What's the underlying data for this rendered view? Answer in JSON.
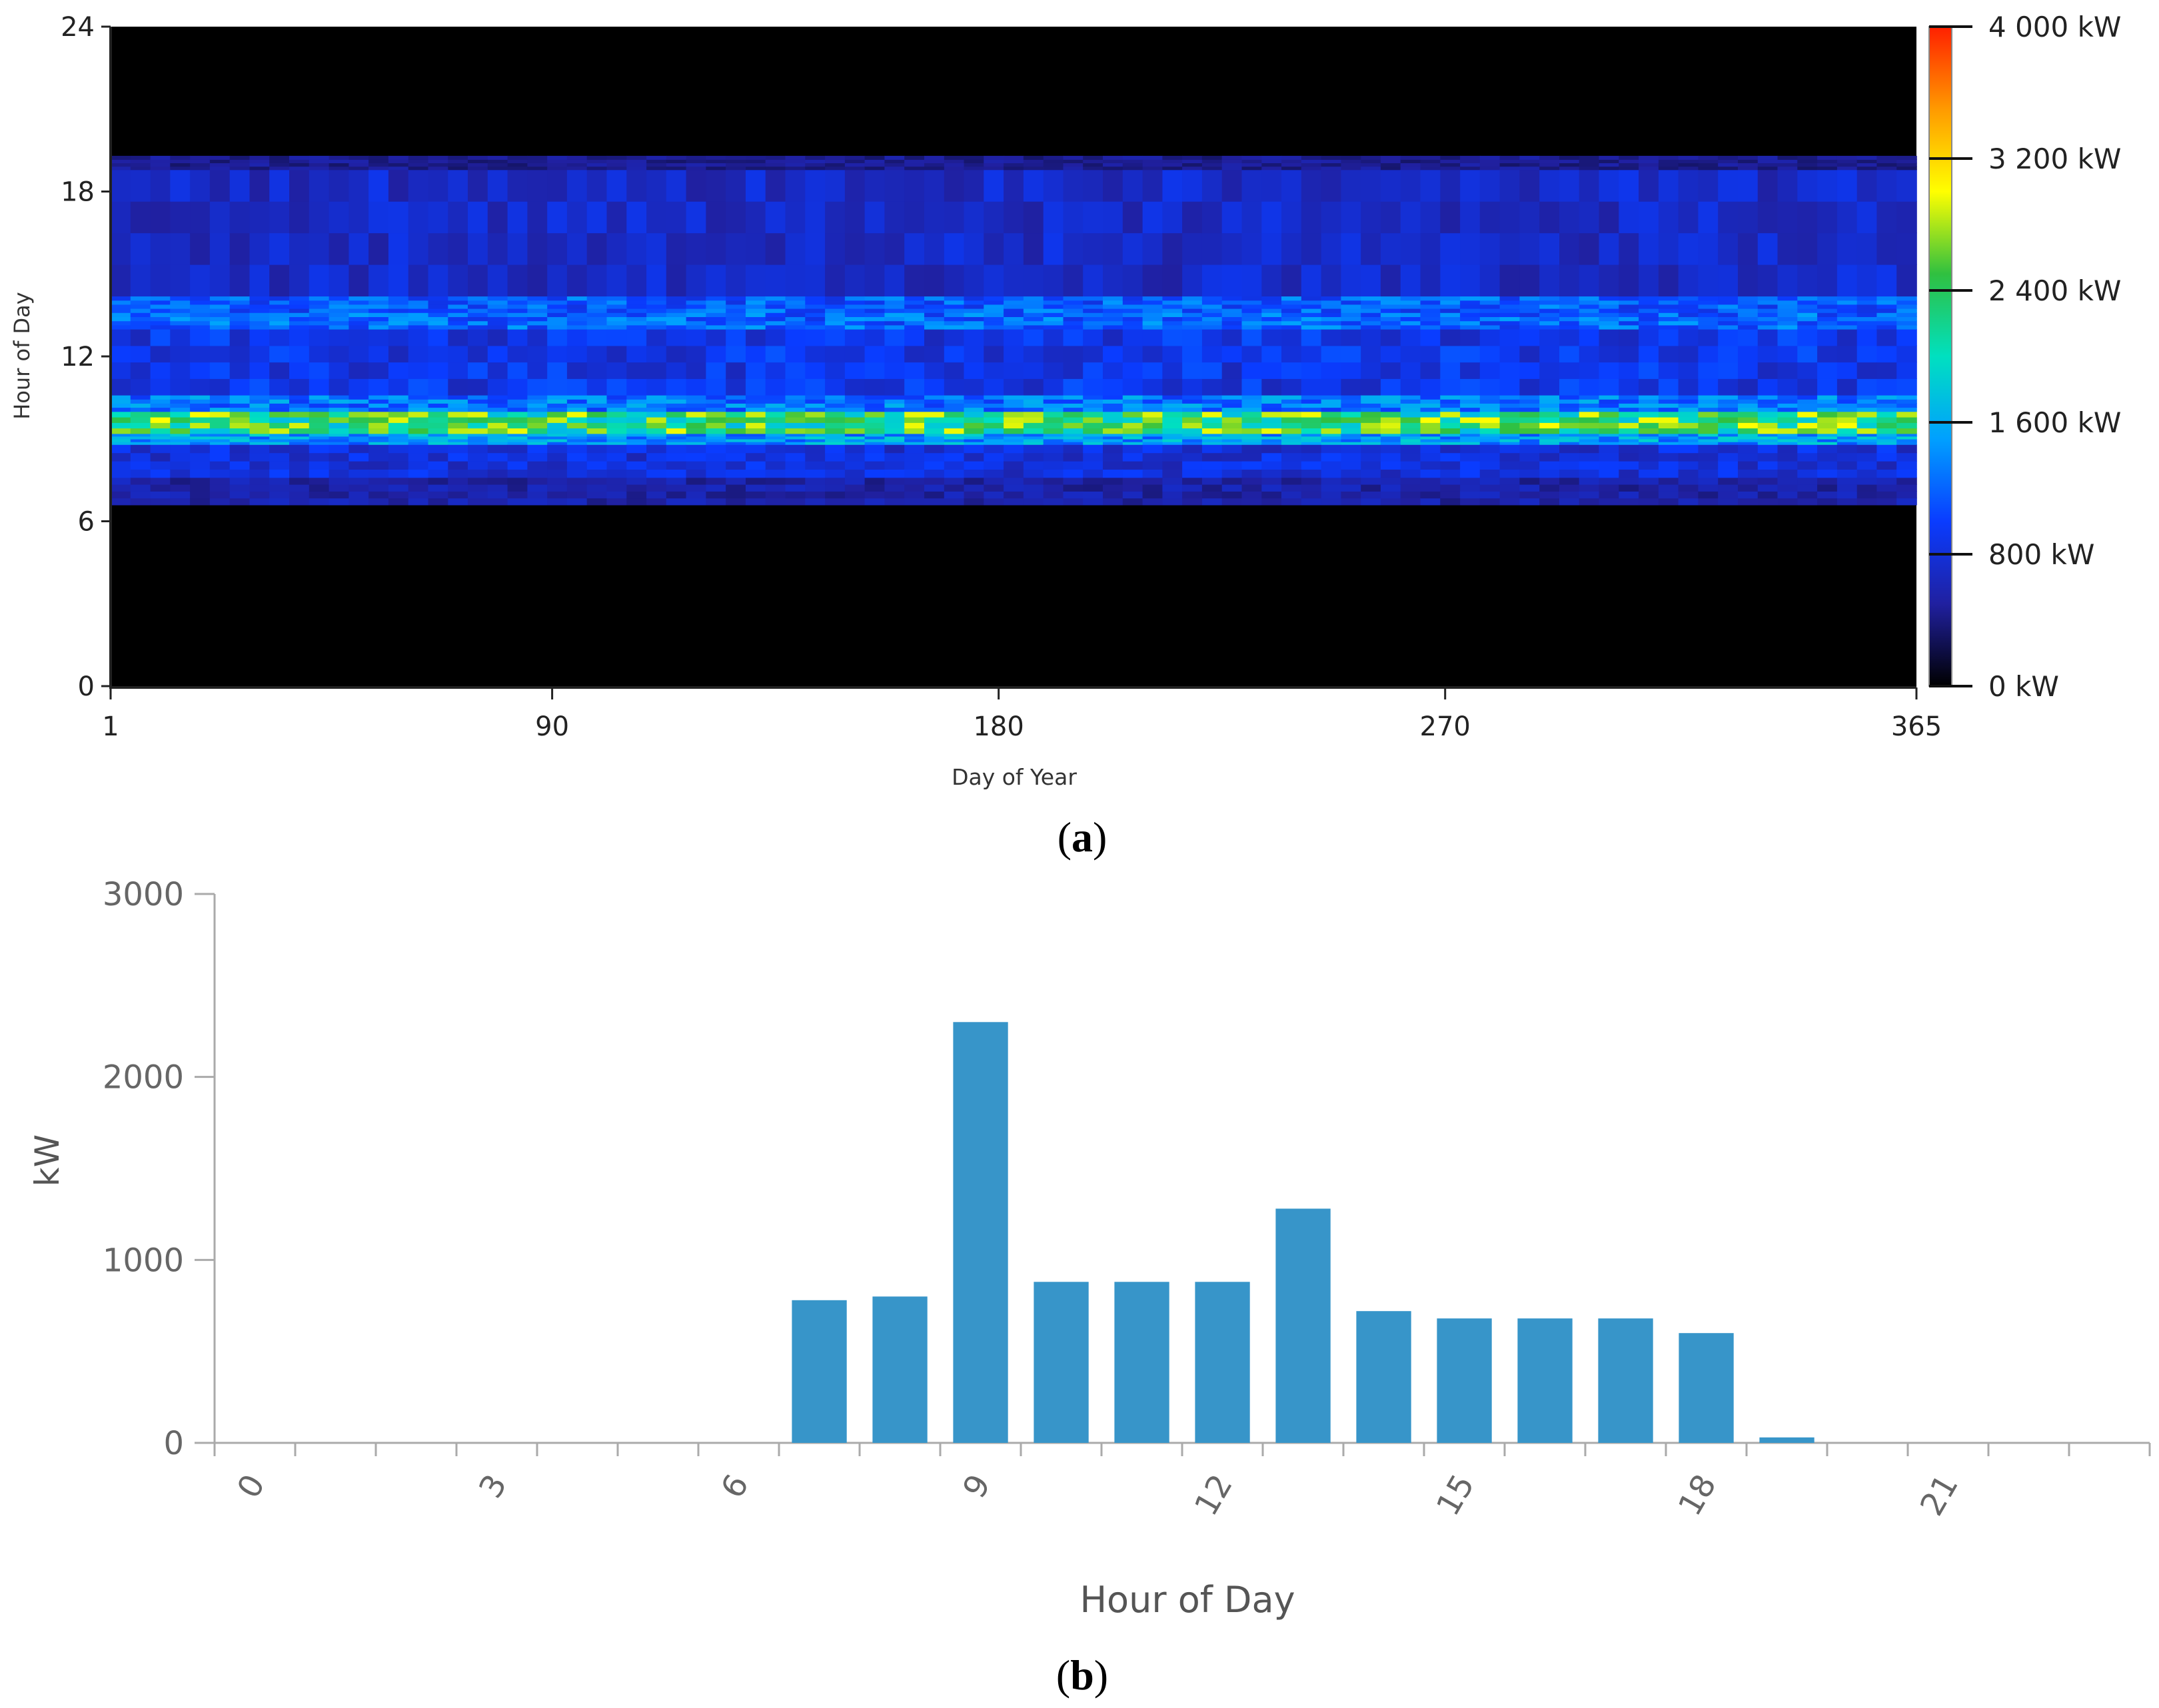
{
  "chart_data": [
    {
      "panel_label": "(a)",
      "panel_letter": "a",
      "type": "heatmap",
      "title": "",
      "xlabel": "Day of Year",
      "ylabel": "Hour of Day",
      "xlim": [
        1,
        365
      ],
      "ylim": [
        0,
        24
      ],
      "x_ticks": [
        "1",
        "90",
        "180",
        "270",
        "365"
      ],
      "x_tick_values": [
        1,
        90,
        180,
        270,
        365
      ],
      "y_ticks": [
        "0",
        "6",
        "12",
        "18",
        "24"
      ],
      "y_tick_values": [
        0,
        6,
        12,
        18,
        24
      ],
      "colorbar": {
        "min": 0,
        "max": 4000,
        "unit": "kW",
        "tick_values": [
          0,
          800,
          1600,
          2400,
          3200,
          4000
        ],
        "tick_labels": [
          "0 kW",
          "800 kW",
          "1 600 kW",
          "2 400 kW",
          "3 200 kW",
          "4 000 kW"
        ],
        "colors": [
          "#000000",
          "#2020a0",
          "#0a3cff",
          "#00a0ff",
          "#00e0c0",
          "#30c040",
          "#ffff00",
          "#ff9a00",
          "#ff2000"
        ]
      },
      "hour_profile_kw": [
        {
          "from": 0,
          "to": 6.6,
          "kw": 0
        },
        {
          "from": 6.6,
          "to": 7.6,
          "kw": 550
        },
        {
          "from": 7.6,
          "to": 8.8,
          "kw": 800
        },
        {
          "from": 8.8,
          "to": 9.2,
          "kw": 1500
        },
        {
          "from": 9.2,
          "to": 10.0,
          "kw": 2350
        },
        {
          "from": 10.0,
          "to": 10.6,
          "kw": 1300
        },
        {
          "from": 10.6,
          "to": 13.0,
          "kw": 880
        },
        {
          "from": 13.0,
          "to": 13.6,
          "kw": 1200
        },
        {
          "from": 13.6,
          "to": 14.2,
          "kw": 1150
        },
        {
          "from": 14.2,
          "to": 18.8,
          "kw": 700
        },
        {
          "from": 18.8,
          "to": 19.3,
          "kw": 450
        },
        {
          "from": 19.3,
          "to": 24,
          "kw": 0
        }
      ]
    },
    {
      "panel_label": "(b)",
      "panel_letter": "b",
      "type": "bar",
      "title": "",
      "xlabel": "Hour of Day",
      "ylabel": "kW",
      "ylim": [
        0,
        3000
      ],
      "y_ticks": [
        0,
        1000,
        2000,
        3000
      ],
      "categories": [
        0,
        1,
        2,
        3,
        4,
        5,
        6,
        7,
        8,
        9,
        10,
        11,
        12,
        13,
        14,
        15,
        16,
        17,
        18,
        19,
        20,
        21,
        22,
        23
      ],
      "x_tick_labels": [
        "0",
        "3",
        "6",
        "9",
        "12",
        "15",
        "18",
        "21"
      ],
      "values": [
        0,
        0,
        0,
        0,
        0,
        0,
        0,
        780,
        800,
        2300,
        880,
        880,
        880,
        1280,
        720,
        680,
        680,
        680,
        600,
        30,
        0,
        0,
        0,
        0
      ],
      "bar_color": "#3795c9"
    }
  ]
}
